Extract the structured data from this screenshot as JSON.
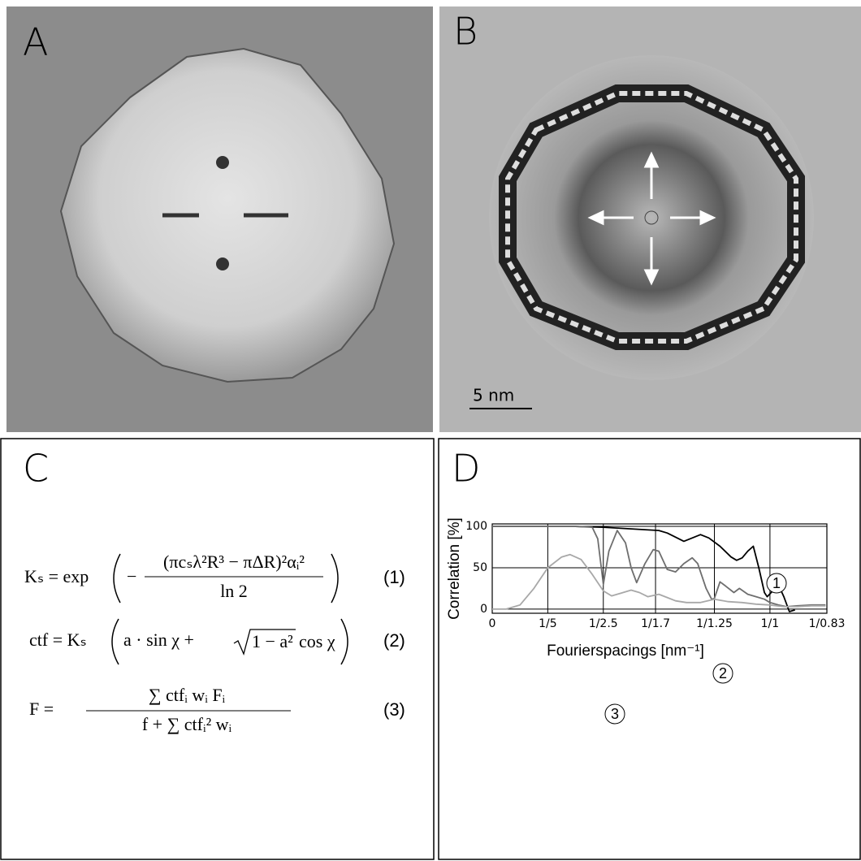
{
  "panels": {
    "a": {
      "label": "A"
    },
    "b": {
      "label": "B",
      "scale_bar": "5 nm"
    },
    "c": {
      "label": "C",
      "eq1": {
        "lhs": "Kₛ = exp",
        "minus": "−",
        "numerator": "(πcₛλ²R³ − πΔR)²αᵢ²",
        "denominator": "ln 2",
        "number": "(1)"
      },
      "eq2": {
        "lhs": "ctf = Kₛ",
        "body": "a · sin χ +",
        "root": "1 − a²",
        "tail": "cos χ",
        "number": "(2)"
      },
      "eq3": {
        "lhs": "F  =",
        "numerator": "∑  ctfᵢ wᵢ Fᵢ",
        "denominator": "f  +  ∑  ctfᵢ² wᵢ",
        "number": "(3)"
      }
    },
    "d": {
      "label": "D"
    }
  },
  "chart_data": {
    "type": "line",
    "x_label": "Fourierspacings [nm⁻¹]",
    "y_label": "Correlation [%]",
    "xlim": [
      0,
      1.205
    ],
    "ylim": [
      -5,
      103
    ],
    "xticks": [
      0,
      {
        "value": 0.2,
        "label": "1/5"
      },
      {
        "value": 0.4,
        "label": "1/2.5"
      },
      {
        "value": 0.588,
        "label": "1/1.7"
      },
      {
        "value": 0.8,
        "label": "1/1.25"
      },
      {
        "value": 1.0,
        "label": "1/1"
      },
      {
        "value": 1.205,
        "label": "1/0.83"
      }
    ],
    "yticks": [
      0,
      50,
      100
    ],
    "grid": true,
    "annotations": [
      "1",
      "2",
      "3"
    ],
    "series": [
      {
        "name": "1",
        "color": "#000000",
        "x": [
          0,
          0.1,
          0.2,
          0.3,
          0.4,
          0.45,
          0.5,
          0.55,
          0.6,
          0.63,
          0.66,
          0.69,
          0.72,
          0.75,
          0.78,
          0.82,
          0.86,
          0.88,
          0.9,
          0.92,
          0.94,
          0.96,
          0.98,
          0.99,
          1.01,
          1.035,
          1.05,
          1.07,
          1.09
        ],
        "values": [
          100,
          100,
          100,
          100,
          99,
          98,
          97,
          96,
          95,
          92,
          87,
          82,
          86,
          90,
          86,
          76,
          63,
          59,
          62,
          70,
          76,
          50,
          20,
          15,
          22,
          26,
          15,
          -3,
          -1
        ]
      },
      {
        "name": "2",
        "color": "#6e6e6e",
        "x": [
          0,
          0.1,
          0.2,
          0.3,
          0.36,
          0.38,
          0.4,
          0.42,
          0.45,
          0.48,
          0.5,
          0.52,
          0.55,
          0.58,
          0.6,
          0.63,
          0.66,
          0.69,
          0.72,
          0.74,
          0.77,
          0.79,
          0.8,
          0.82,
          0.84,
          0.87,
          0.89,
          0.92,
          0.95,
          0.98,
          1.0,
          1.03,
          1.06,
          1.1,
          1.15,
          1.2
        ],
        "values": [
          100,
          100,
          100,
          100,
          99,
          85,
          30,
          70,
          95,
          80,
          50,
          32,
          55,
          72,
          70,
          48,
          45,
          55,
          62,
          55,
          25,
          12,
          13,
          33,
          28,
          20,
          25,
          18,
          15,
          12,
          8,
          5,
          3,
          4,
          5,
          5
        ]
      },
      {
        "name": "3",
        "color": "#a8a8a8",
        "x": [
          0,
          0.05,
          0.1,
          0.15,
          0.2,
          0.25,
          0.28,
          0.32,
          0.36,
          0.4,
          0.43,
          0.46,
          0.5,
          0.53,
          0.56,
          0.6,
          0.63,
          0.66,
          0.7,
          0.75,
          0.8,
          0.85,
          0.9,
          0.95,
          1.0,
          1.05,
          1.1,
          1.15,
          1.2
        ],
        "values": [
          0,
          0,
          5,
          25,
          50,
          63,
          66,
          60,
          42,
          22,
          16,
          19,
          23,
          20,
          15,
          18,
          14,
          10,
          8,
          8,
          12,
          9,
          8,
          6,
          5,
          3,
          3,
          4,
          4
        ]
      }
    ]
  }
}
